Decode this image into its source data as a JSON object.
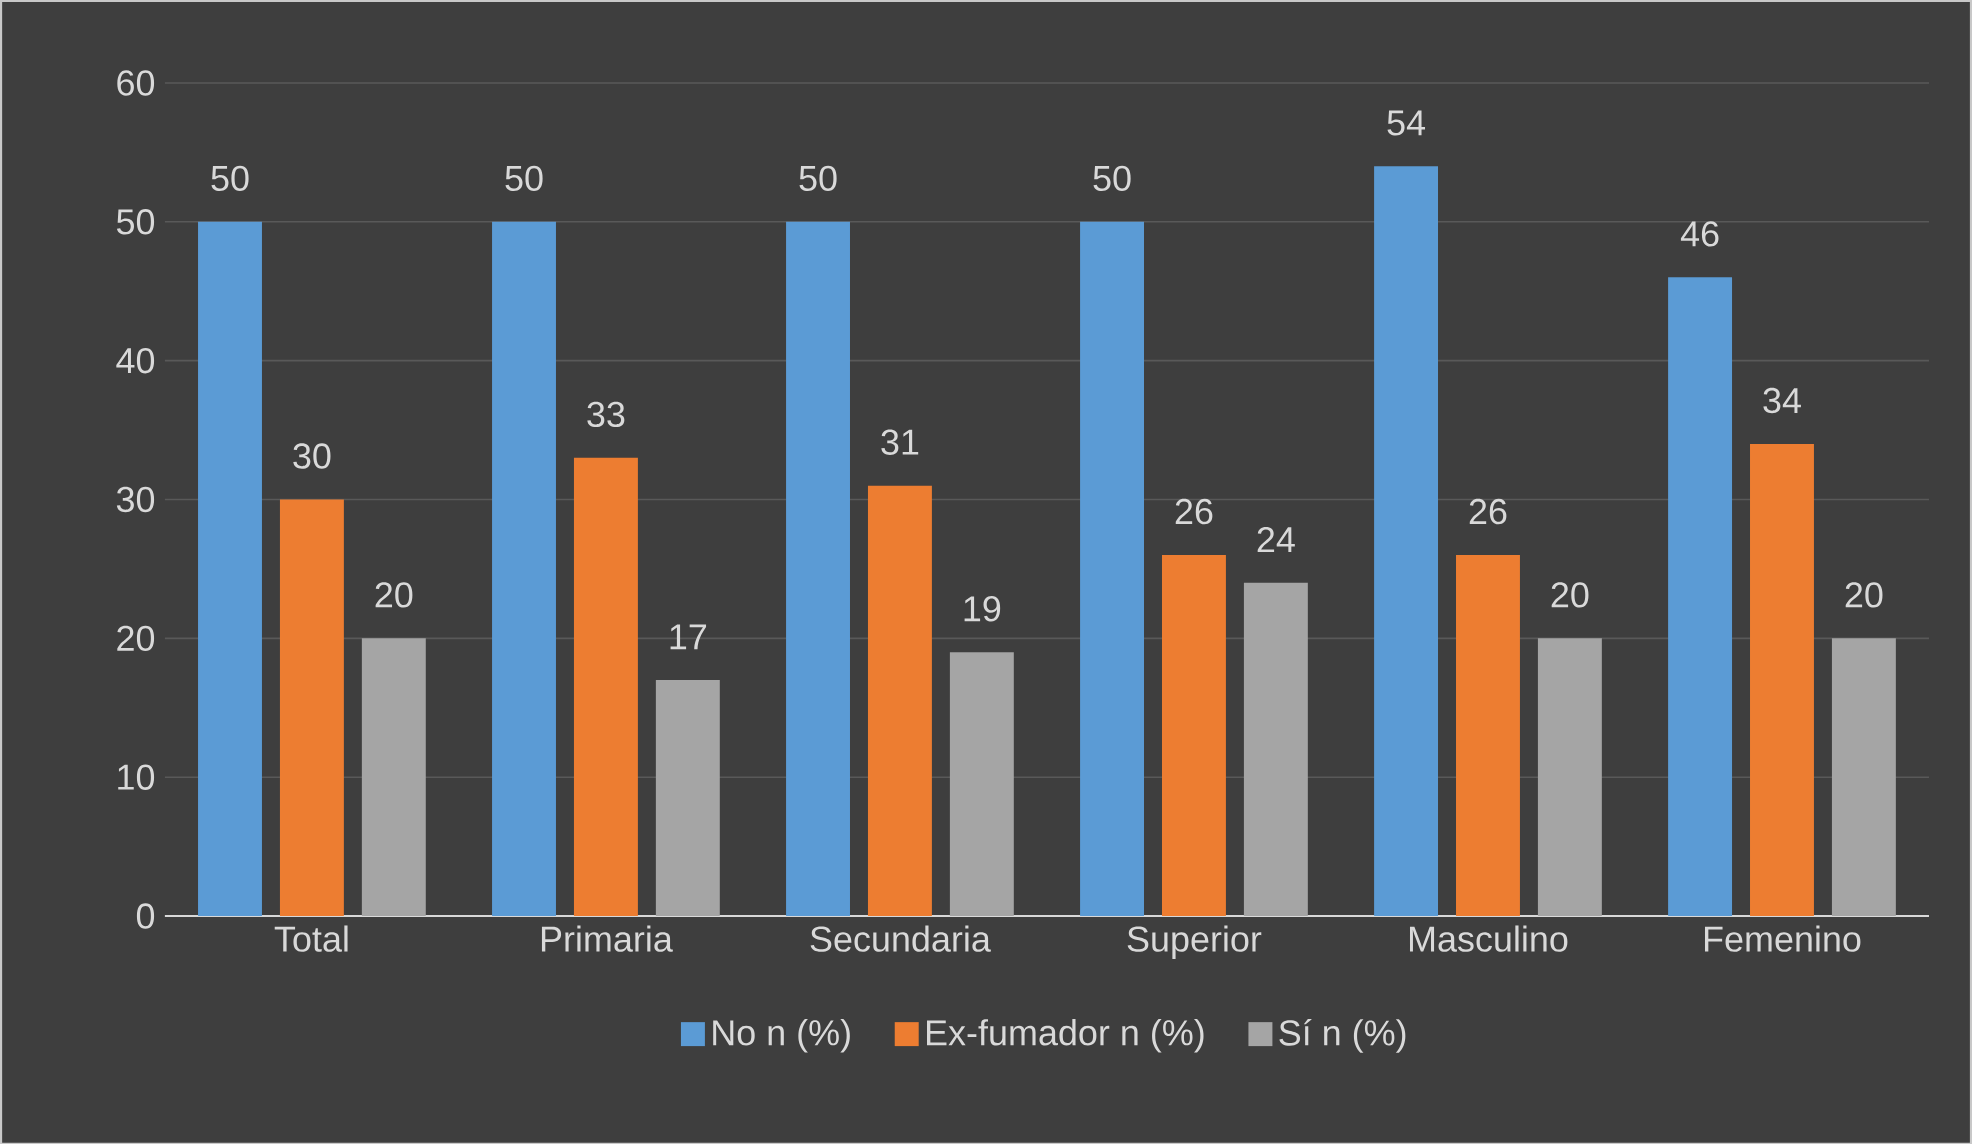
{
  "chart_data": {
    "type": "bar",
    "categories": [
      "Total",
      "Primaria",
      "Secundaria",
      "Superior",
      "Masculino",
      "Femenino"
    ],
    "series": [
      {
        "name": "No n (%)",
        "color": "#5b9bd5",
        "values": [
          50,
          50,
          50,
          50,
          54,
          46
        ]
      },
      {
        "name": "Ex-fumador n (%)",
        "color": "#ed7d31",
        "values": [
          30,
          33,
          31,
          26,
          26,
          34
        ]
      },
      {
        "name": "Sí n (%)",
        "color": "#a5a5a5",
        "values": [
          20,
          17,
          19,
          24,
          20,
          20
        ]
      }
    ],
    "ylim": [
      0,
      60
    ],
    "yticks": [
      0,
      10,
      20,
      30,
      40,
      50,
      60
    ],
    "grid": "y",
    "legend": "bottom",
    "data_labels": true
  }
}
